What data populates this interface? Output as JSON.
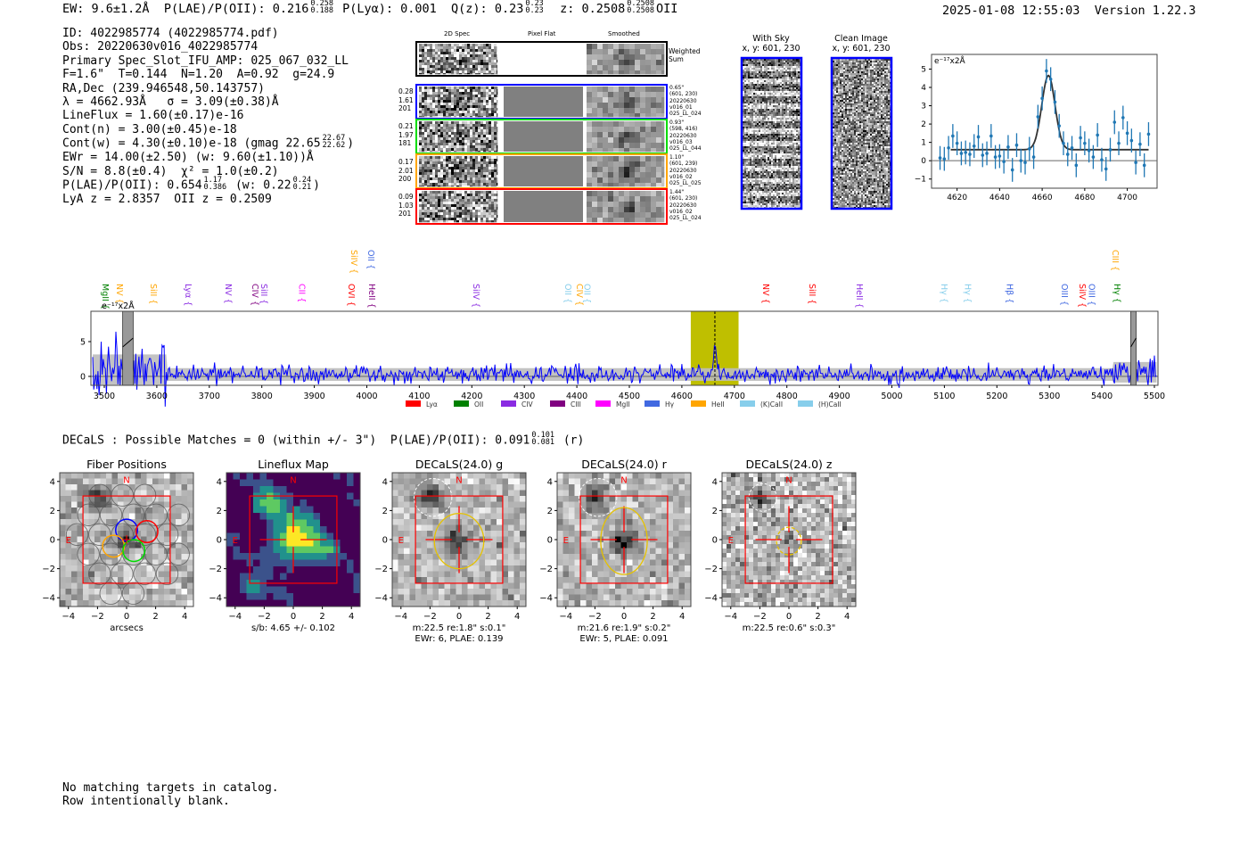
{
  "header": {
    "ew": "EW: 9.6±1.2Å",
    "plae": "P(LAE)/P(OII): 0.216",
    "plae_hi": "0.258",
    "plae_lo": "0.188",
    "plya": "P(Lyα): 0.001",
    "qz": "Q(z): 0.23",
    "qz_hi": "0.23",
    "qz_lo": "0.23",
    "z": "z: 0.2508",
    "z_hi": "0.2508",
    "z_lo": "0.2508",
    "z_line": "OII",
    "timestamp": "2025-01-08 12:55:03",
    "version": "Version 1.22.3"
  },
  "info": {
    "id": "ID: 4022985774 (4022985774.pdf)",
    "obs": "Obs: 20220630v016_4022985774",
    "primary": "Primary Spec_Slot_IFU_AMP: 025_067_032_LL",
    "params": "F=1.6\"  T=0.144  N=1.20  A=0.92  g=24.9",
    "radec": "RA,Dec (239.946548,50.143757)",
    "lambda": "λ = 4662.93Å   σ = 3.09(±0.38)Å",
    "lineflux": "LineFlux = 1.60(±0.17)e-16",
    "cont_n": "Cont(n) = 3.00(±0.45)e-18",
    "cont_w": "Cont(w) = 4.30(±0.10)e-18 (gmag 22.65",
    "cont_w_hi": "22.67",
    "cont_w_lo": "22.62",
    "cont_w_end": ")",
    "ewr": "EWr = 14.00(±2.50) (w: 9.60(±1.10))Å",
    "sn": "S/N = 8.8(±0.4)  χ² = 1.0(±0.2)",
    "plae": "P(LAE)/P(OII): 0.654",
    "plae_hi": "1.17",
    "plae_lo": "0.386",
    "plae_w": "(w: 0.22",
    "plae_w_hi": "0.24",
    "plae_w_lo": "0.21",
    "plae_end": ")",
    "z": "LyA z = 2.8357  OII z = 0.2509"
  },
  "spec2d": {
    "col_headers": [
      "2D Spec",
      "Pixel Flat",
      "Smoothed"
    ],
    "weighted_sum": "Weighted\nSum",
    "rows": [
      {
        "color": "#0000ff",
        "left": "0.28\n1.61\n201",
        "right": "0.65\"\n(601, 230)\n20220630\nv016_01\n025_LL_024"
      },
      {
        "color": "#00dd00",
        "left": "0.21\n1.97\n181",
        "right": "0.93\"\n(598, 416)\n20220630\nv016_03\n025_LL_044"
      },
      {
        "color": "#ffa500",
        "left": "0.17\n2.01\n200",
        "right": "1.10\"\n(601, 239)\n20220630\nv016_02\n025_LL_025"
      },
      {
        "color": "#ff0000",
        "left": "0.09\n1.03\n201",
        "right": "1.44\"\n(601, 230)\n20220630\nv016_02\n025_LL_024"
      }
    ]
  },
  "ccd": {
    "with_sky": "With Sky\nx, y: 601, 230",
    "clean": "Clean Image\nx, y: 601, 230"
  },
  "colors": {
    "blue": "#0000ff",
    "data": "#1f77b4",
    "spectrum": "#0000ff",
    "highlight": "#bfbf00"
  },
  "chart_data": [
    {
      "type": "scatter",
      "title": "",
      "ylabel": "e⁻¹⁷x2Å",
      "xlim": [
        4608,
        4714
      ],
      "ylim": [
        -1.5,
        5.8
      ],
      "xticks": [
        "4620",
        "4640",
        "4660",
        "4680",
        "4700"
      ],
      "yticks": [
        "−1",
        "0",
        "1",
        "2",
        "3",
        "4",
        "5"
      ],
      "x": [
        4612,
        4614,
        4616,
        4618,
        4620,
        4622,
        4624,
        4626,
        4628,
        4630,
        4632,
        4634,
        4636,
        4638,
        4640,
        4642,
        4644,
        4646,
        4648,
        4650,
        4652,
        4654,
        4656,
        4658,
        4660,
        4662,
        4664,
        4666,
        4668,
        4670,
        4672,
        4674,
        4676,
        4678,
        4680,
        4682,
        4684,
        4686,
        4688,
        4690,
        4692,
        4694,
        4696,
        4698,
        4700,
        4702,
        4704,
        4706,
        4708,
        4710
      ],
      "y": [
        0.15,
        0.1,
        0.7,
        1.35,
        0.95,
        0.4,
        0.45,
        0.35,
        0.8,
        1.3,
        0.3,
        0.4,
        1.35,
        0.2,
        0.25,
        -0.05,
        0.75,
        -0.5,
        0.85,
        0.0,
        -0.1,
        0.65,
        0.2,
        2.4,
        3.4,
        4.9,
        4.45,
        3.2,
        1.9,
        0.95,
        0.35,
        0.7,
        -0.25,
        1.25,
        0.95,
        0.55,
        0.2,
        1.4,
        0.05,
        -0.45,
        0.6,
        2.1,
        0.95,
        2.35,
        1.5,
        1.1,
        -0.1,
        0.9,
        -0.25,
        1.45
      ],
      "yerr": 0.65,
      "fit": {
        "continuum": 0.6,
        "center": 4662.93,
        "sigma": 3.09,
        "peak": 4.65,
        "xrange": [
          4617,
          4710
        ]
      }
    },
    {
      "type": "line",
      "ylabel": "e⁻¹⁷x2Å",
      "xlim": [
        3475,
        5505
      ],
      "ylim": [
        -1.3,
        9.4
      ],
      "xticks": [
        "3500",
        "3600",
        "3700",
        "3800",
        "3900",
        "4000",
        "4100",
        "4200",
        "4300",
        "4400",
        "4500",
        "4600",
        "4700",
        "4800",
        "4900",
        "5000",
        "5100",
        "5200",
        "5300",
        "5400",
        "5500"
      ],
      "yticks": [
        "0",
        "5"
      ],
      "highlight_range": [
        4617,
        4708
      ],
      "line_center": 4662.93,
      "masked_ranges": [
        [
          3535,
          3555
        ],
        [
          5455,
          5465
        ]
      ],
      "line_peak": 4.6,
      "continuum": 0.6,
      "noise_sigma": 0.8,
      "legend": [
        {
          "label": "Lyα",
          "color": "#ff0000"
        },
        {
          "label": "OII",
          "color": "#008000"
        },
        {
          "label": "CIV",
          "color": "#8a2be2"
        },
        {
          "label": "CIII",
          "color": "#800080"
        },
        {
          "label": "MgII",
          "color": "#ff00ff"
        },
        {
          "label": "Hγ",
          "color": "#4169e1"
        },
        {
          "label": "HeII",
          "color": "#ffa500"
        },
        {
          "label": "(K)CaII",
          "color": "#87ceeb"
        },
        {
          "label": "(H)CaII",
          "color": "#87ceeb"
        }
      ],
      "line_labels": [
        {
          "label": "MgII",
          "w": 3500,
          "color": "#008000",
          "row": 0
        },
        {
          "label": "NV",
          "w": 3527,
          "color": "#ffa500",
          "row": 0
        },
        {
          "label": "SiII",
          "w": 3592,
          "color": "#ffa500",
          "row": 0
        },
        {
          "label": "Lyα",
          "w": 3658,
          "color": "#8a2be2",
          "row": 0
        },
        {
          "label": "NV",
          "w": 3734,
          "color": "#8a2be2",
          "row": 0
        },
        {
          "label": "CIV",
          "w": 3785,
          "color": "#800080",
          "row": 0
        },
        {
          "label": "SiII",
          "w": 3802,
          "color": "#8a2be2",
          "row": 0
        },
        {
          "label": "CII",
          "w": 3874,
          "color": "#ff00ff",
          "row": 0
        },
        {
          "label": "OVI",
          "w": 3969,
          "color": "#ff0000",
          "row": 0
        },
        {
          "label": "HeII",
          "w": 4008,
          "color": "#800080",
          "row": 0
        },
        {
          "label": "SiIV",
          "w": 4206,
          "color": "#8a2be2",
          "row": 0
        },
        {
          "label": "OII",
          "w": 4381,
          "color": "#87ceeb",
          "row": 0
        },
        {
          "label": "CIV",
          "w": 4403,
          "color": "#ffa500",
          "row": 0
        },
        {
          "label": "OII",
          "w": 4418,
          "color": "#87ceeb",
          "row": 0
        },
        {
          "label": "NV",
          "w": 4758,
          "color": "#ff0000",
          "row": 0
        },
        {
          "label": "SiII",
          "w": 4846,
          "color": "#ff0000",
          "row": 0
        },
        {
          "label": "HeII",
          "w": 4936,
          "color": "#8a2be2",
          "row": 0
        },
        {
          "label": "Hγ",
          "w": 5098,
          "color": "#87ceeb",
          "row": 0
        },
        {
          "label": "Hγ",
          "w": 5143,
          "color": "#87ceeb",
          "row": 0
        },
        {
          "label": "Hβ",
          "w": 5222,
          "color": "#4169e1",
          "row": 0
        },
        {
          "label": "OIII",
          "w": 5327,
          "color": "#4169e1",
          "row": 0
        },
        {
          "label": "SiIV",
          "w": 5361,
          "color": "#ff0000",
          "row": 0
        },
        {
          "label": "OIII",
          "w": 5379,
          "color": "#4169e1",
          "row": 0
        },
        {
          "label": "Hγ",
          "w": 5427,
          "color": "#008000",
          "row": 0
        },
        {
          "label": "SiIV",
          "w": 3974,
          "color": "#ffa500",
          "row": 1
        },
        {
          "label": "OII",
          "w": 4006,
          "color": "#4169e1",
          "row": 1
        },
        {
          "label": "CIII",
          "w": 5424,
          "color": "#ffa500",
          "row": 1
        }
      ]
    }
  ],
  "decals": {
    "line": "DECaLS : Possible Matches = 0 (within +/- 3\")  P(LAE)/P(OII): 0.091",
    "hi": "0.101",
    "lo": "0.081",
    "end": "(r)"
  },
  "cutouts": {
    "ticks": [
      "−4",
      "−2",
      "0",
      "2",
      "4"
    ],
    "north": "N",
    "east": "E",
    "panels": [
      {
        "title": "Fiber Positions",
        "caption": "arcsecs",
        "kind": "fibers"
      },
      {
        "title": "Lineflux Map",
        "caption": "s/b: 4.65 +/- 0.102",
        "kind": "lineflux"
      },
      {
        "title": "DECaLS(24.0) g",
        "caption": "m:22.5  re:1.8\"  s:0.1\"\nEWr: 6, PLAE: 0.139",
        "kind": "g"
      },
      {
        "title": "DECaLS(24.0) r",
        "caption": "m:21.6  re:1.9\"  s:0.2\"\nEWr: 5, PLAE: 0.091",
        "kind": "r"
      },
      {
        "title": "DECaLS(24.0) z",
        "caption": "m:22.5  re:0.6\"  s:0.3\"",
        "kind": "z"
      }
    ]
  },
  "footer": {
    "line1": "No matching targets in catalog.",
    "line2": "Row intentionally blank."
  }
}
